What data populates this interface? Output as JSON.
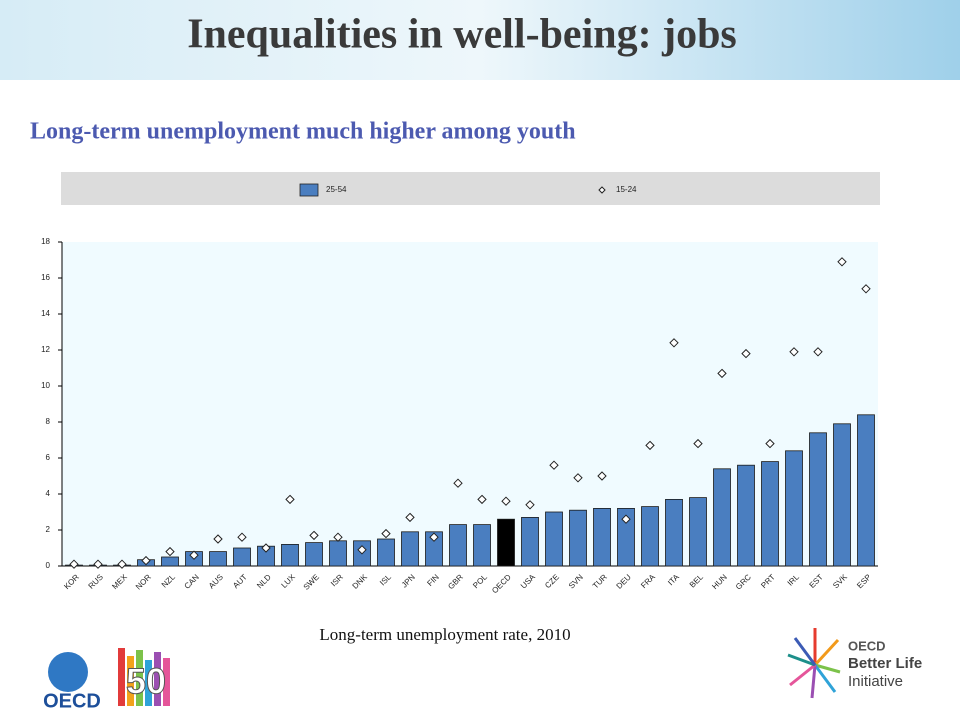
{
  "slide": {
    "title": "Inequalities in well-being: jobs",
    "subtitle": "Long-term unemployment much higher among youth",
    "caption": "Long-term unemployment rate, 2010",
    "logos": {
      "left": [
        "OECD",
        "50"
      ],
      "right": [
        "OECD",
        "Better Life",
        "Initiative"
      ]
    }
  },
  "chart_data": {
    "type": "bar",
    "categories": [
      "KOR",
      "RUS",
      "MEX",
      "NOR",
      "NZL",
      "CAN",
      "AUS",
      "AUT",
      "NLD",
      "LUX",
      "SWE",
      "ISR",
      "DNK",
      "ISL",
      "JPN",
      "FIN",
      "GBR",
      "POL",
      "OECD",
      "USA",
      "CZE",
      "SVN",
      "TUR",
      "DEU",
      "FRA",
      "ITA",
      "BEL",
      "HUN",
      "GRC",
      "PRT",
      "IRL",
      "EST",
      "SVK",
      "ESP"
    ],
    "series": [
      {
        "name": "25-54",
        "type": "bar",
        "color": "#4a7ec0",
        "colors": [
          "#4a7ec0",
          "#4a7ec0",
          "#4a7ec0",
          "#4a7ec0",
          "#4a7ec0",
          "#4a7ec0",
          "#4a7ec0",
          "#4a7ec0",
          "#4a7ec0",
          "#4a7ec0",
          "#4a7ec0",
          "#4a7ec0",
          "#4a7ec0",
          "#4a7ec0",
          "#4a7ec0",
          "#4a7ec0",
          "#4a7ec0",
          "#4a7ec0",
          "#000000",
          "#4a7ec0",
          "#4a7ec0",
          "#4a7ec0",
          "#4a7ec0",
          "#4a7ec0",
          "#4a7ec0",
          "#4a7ec0",
          "#4a7ec0",
          "#4a7ec0",
          "#4a7ec0",
          "#4a7ec0",
          "#4a7ec0",
          "#4a7ec0",
          "#4a7ec0",
          "#4a7ec0"
        ],
        "values": [
          0.05,
          0.05,
          0.05,
          0.35,
          0.5,
          0.8,
          0.8,
          1.0,
          1.1,
          1.2,
          1.3,
          1.4,
          1.4,
          1.5,
          1.9,
          1.9,
          2.3,
          2.3,
          2.6,
          2.7,
          3.0,
          3.1,
          3.2,
          3.2,
          3.3,
          3.7,
          3.8,
          5.4,
          5.6,
          5.8,
          6.4,
          7.4,
          7.9,
          8.4
        ]
      },
      {
        "name": "15-24",
        "type": "scatter",
        "color": "#ffffff",
        "values": [
          0.1,
          0.1,
          0.1,
          0.3,
          0.8,
          0.6,
          1.5,
          1.6,
          1.0,
          3.7,
          1.7,
          1.6,
          0.9,
          1.8,
          2.7,
          1.6,
          4.6,
          3.7,
          3.6,
          3.4,
          5.6,
          4.9,
          5.0,
          2.6,
          6.7,
          12.4,
          6.8,
          10.7,
          11.8,
          6.8,
          11.9,
          11.9,
          16.9,
          15.4
        ]
      }
    ],
    "ylim": [
      0,
      18
    ],
    "yticks": [
      0,
      2,
      4,
      6,
      8,
      10,
      12,
      14,
      16,
      18
    ],
    "grid": false,
    "legend": "top"
  }
}
